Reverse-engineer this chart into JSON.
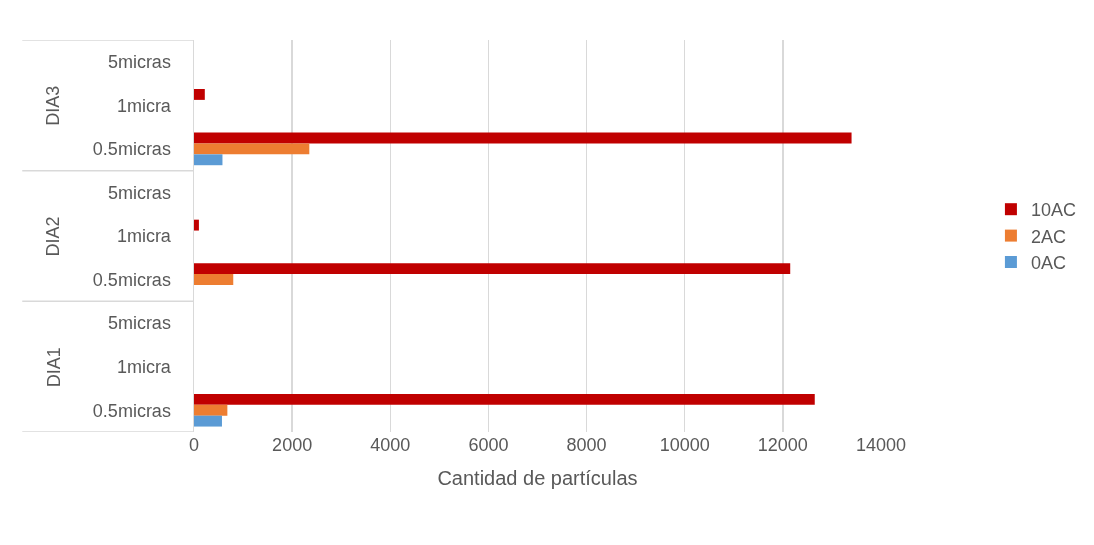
{
  "chart_data": {
    "type": "bar",
    "orientation": "horizontal",
    "categories": [
      "5micras",
      "1micra",
      "0.5micras",
      "5micras",
      "1micra",
      "0.5micras",
      "5micras",
      "1micra",
      "0.5micras"
    ],
    "annotations": [
      "DIA3",
      "DIA2",
      "DIA1"
    ],
    "series": [
      {
        "name": "10AC",
        "color": "#c00000",
        "values": [
          0,
          220,
          13400,
          0,
          100,
          12150,
          0,
          0,
          12650
        ]
      },
      {
        "name": "2AC",
        "color": "#ed7d31",
        "values": [
          0,
          0,
          2350,
          0,
          0,
          800,
          0,
          0,
          680
        ]
      },
      {
        "name": "0AC",
        "color": "#5b9bd5",
        "values": [
          0,
          0,
          580,
          0,
          0,
          0,
          0,
          0,
          570
        ]
      }
    ],
    "xlabel": "Cantidad de partículas",
    "xlim": [
      0,
      14000
    ],
    "xticks": [
      0,
      2000,
      4000,
      6000,
      8000,
      10000,
      12000,
      14000
    ],
    "grid": "x",
    "legend": "right"
  }
}
